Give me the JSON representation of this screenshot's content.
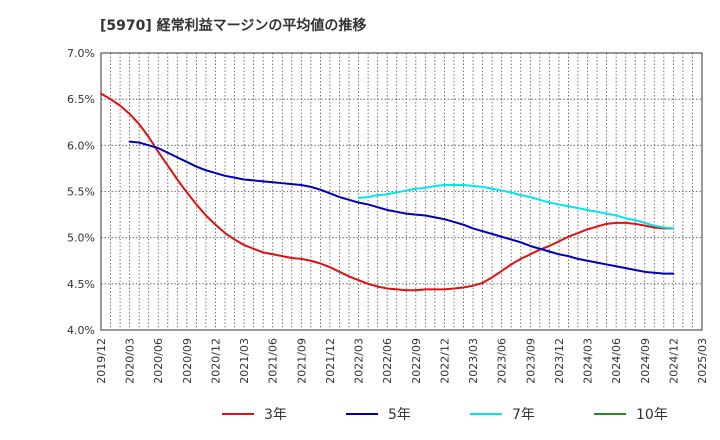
{
  "chart_data": {
    "type": "line",
    "title": "[5970]  経常利益マージンの平均値の推移",
    "xlabel": "",
    "ylabel": "",
    "ylim": [
      4.0,
      7.0
    ],
    "y_ticks": [
      "4.0%",
      "4.5%",
      "5.0%",
      "5.5%",
      "6.0%",
      "6.5%",
      "7.0%"
    ],
    "x_ticks": [
      "2019/12",
      "2020/03",
      "2020/06",
      "2020/09",
      "2020/12",
      "2021/03",
      "2021/06",
      "2021/09",
      "2021/12",
      "2022/03",
      "2022/06",
      "2022/09",
      "2022/12",
      "2023/03",
      "2023/06",
      "2023/09",
      "2023/12",
      "2024/03",
      "2024/06",
      "2024/09",
      "2024/12",
      "2025/03"
    ],
    "grid": true,
    "legend_position": "bottom",
    "series": [
      {
        "name": "3年",
        "color": "#dd1111",
        "points": [
          [
            "2019/12",
            6.56
          ],
          [
            "2020/01",
            6.5
          ],
          [
            "2020/02",
            6.43
          ],
          [
            "2020/03",
            6.34
          ],
          [
            "2020/04",
            6.23
          ],
          [
            "2020/05",
            6.09
          ],
          [
            "2020/06",
            5.93
          ],
          [
            "2020/07",
            5.78
          ],
          [
            "2020/08",
            5.63
          ],
          [
            "2020/09",
            5.49
          ],
          [
            "2020/10",
            5.36
          ],
          [
            "2020/11",
            5.24
          ],
          [
            "2020/12",
            5.14
          ],
          [
            "2021/01",
            5.05
          ],
          [
            "2021/02",
            4.98
          ],
          [
            "2021/03",
            4.92
          ],
          [
            "2021/04",
            4.88
          ],
          [
            "2021/05",
            4.84
          ],
          [
            "2021/06",
            4.82
          ],
          [
            "2021/07",
            4.8
          ],
          [
            "2021/08",
            4.78
          ],
          [
            "2021/09",
            4.77
          ],
          [
            "2021/10",
            4.75
          ],
          [
            "2021/11",
            4.72
          ],
          [
            "2021/12",
            4.68
          ],
          [
            "2022/01",
            4.63
          ],
          [
            "2022/02",
            4.58
          ],
          [
            "2022/03",
            4.54
          ],
          [
            "2022/04",
            4.5
          ],
          [
            "2022/05",
            4.47
          ],
          [
            "2022/06",
            4.45
          ],
          [
            "2022/07",
            4.44
          ],
          [
            "2022/08",
            4.43
          ],
          [
            "2022/09",
            4.43
          ],
          [
            "2022/10",
            4.44
          ],
          [
            "2022/11",
            4.44
          ],
          [
            "2022/12",
            4.44
          ],
          [
            "2023/01",
            4.45
          ],
          [
            "2023/02",
            4.46
          ],
          [
            "2023/03",
            4.48
          ],
          [
            "2023/04",
            4.51
          ],
          [
            "2023/05",
            4.57
          ],
          [
            "2023/06",
            4.64
          ],
          [
            "2023/07",
            4.71
          ],
          [
            "2023/08",
            4.77
          ],
          [
            "2023/09",
            4.82
          ],
          [
            "2023/10",
            4.87
          ],
          [
            "2023/11",
            4.91
          ],
          [
            "2023/12",
            4.96
          ],
          [
            "2024/01",
            5.01
          ],
          [
            "2024/02",
            5.05
          ],
          [
            "2024/03",
            5.09
          ],
          [
            "2024/04",
            5.12
          ],
          [
            "2024/05",
            5.15
          ],
          [
            "2024/06",
            5.16
          ],
          [
            "2024/07",
            5.16
          ],
          [
            "2024/08",
            5.15
          ],
          [
            "2024/09",
            5.13
          ],
          [
            "2024/10",
            5.11
          ],
          [
            "2024/11",
            5.1
          ],
          [
            "2024/12",
            5.1
          ]
        ]
      },
      {
        "name": "5年",
        "color": "#0000bb",
        "points": [
          [
            "2020/03",
            6.04
          ],
          [
            "2020/04",
            6.03
          ],
          [
            "2020/05",
            6.0
          ],
          [
            "2020/06",
            5.97
          ],
          [
            "2020/07",
            5.92
          ],
          [
            "2020/08",
            5.87
          ],
          [
            "2020/09",
            5.82
          ],
          [
            "2020/10",
            5.77
          ],
          [
            "2020/11",
            5.73
          ],
          [
            "2020/12",
            5.7
          ],
          [
            "2021/01",
            5.67
          ],
          [
            "2021/02",
            5.65
          ],
          [
            "2021/03",
            5.63
          ],
          [
            "2021/04",
            5.62
          ],
          [
            "2021/05",
            5.61
          ],
          [
            "2021/06",
            5.6
          ],
          [
            "2021/07",
            5.59
          ],
          [
            "2021/08",
            5.58
          ],
          [
            "2021/09",
            5.57
          ],
          [
            "2021/10",
            5.55
          ],
          [
            "2021/11",
            5.52
          ],
          [
            "2021/12",
            5.48
          ],
          [
            "2022/01",
            5.44
          ],
          [
            "2022/02",
            5.41
          ],
          [
            "2022/03",
            5.38
          ],
          [
            "2022/04",
            5.36
          ],
          [
            "2022/05",
            5.33
          ],
          [
            "2022/06",
            5.3
          ],
          [
            "2022/07",
            5.28
          ],
          [
            "2022/08",
            5.26
          ],
          [
            "2022/09",
            5.25
          ],
          [
            "2022/10",
            5.24
          ],
          [
            "2022/11",
            5.22
          ],
          [
            "2022/12",
            5.2
          ],
          [
            "2023/01",
            5.17
          ],
          [
            "2023/02",
            5.14
          ],
          [
            "2023/03",
            5.1
          ],
          [
            "2023/04",
            5.07
          ],
          [
            "2023/05",
            5.04
          ],
          [
            "2023/06",
            5.01
          ],
          [
            "2023/07",
            4.98
          ],
          [
            "2023/08",
            4.95
          ],
          [
            "2023/09",
            4.91
          ],
          [
            "2023/10",
            4.88
          ],
          [
            "2023/11",
            4.85
          ],
          [
            "2023/12",
            4.82
          ],
          [
            "2024/01",
            4.8
          ],
          [
            "2024/02",
            4.77
          ],
          [
            "2024/03",
            4.75
          ],
          [
            "2024/04",
            4.73
          ],
          [
            "2024/05",
            4.71
          ],
          [
            "2024/06",
            4.69
          ],
          [
            "2024/07",
            4.67
          ],
          [
            "2024/08",
            4.65
          ],
          [
            "2024/09",
            4.63
          ],
          [
            "2024/10",
            4.62
          ],
          [
            "2024/11",
            4.61
          ],
          [
            "2024/12",
            4.61
          ]
        ]
      },
      {
        "name": "7年",
        "color": "#00e5ee",
        "points": [
          [
            "2022/03",
            5.43
          ],
          [
            "2022/04",
            5.44
          ],
          [
            "2022/05",
            5.46
          ],
          [
            "2022/06",
            5.47
          ],
          [
            "2022/07",
            5.49
          ],
          [
            "2022/08",
            5.51
          ],
          [
            "2022/09",
            5.53
          ],
          [
            "2022/10",
            5.54
          ],
          [
            "2022/11",
            5.56
          ],
          [
            "2022/12",
            5.57
          ],
          [
            "2023/01",
            5.57
          ],
          [
            "2023/02",
            5.57
          ],
          [
            "2023/03",
            5.56
          ],
          [
            "2023/04",
            5.55
          ],
          [
            "2023/05",
            5.53
          ],
          [
            "2023/06",
            5.51
          ],
          [
            "2023/07",
            5.49
          ],
          [
            "2023/08",
            5.46
          ],
          [
            "2023/09",
            5.44
          ],
          [
            "2023/10",
            5.41
          ],
          [
            "2023/11",
            5.38
          ],
          [
            "2023/12",
            5.36
          ],
          [
            "2024/01",
            5.34
          ],
          [
            "2024/02",
            5.32
          ],
          [
            "2024/03",
            5.3
          ],
          [
            "2024/04",
            5.28
          ],
          [
            "2024/05",
            5.26
          ],
          [
            "2024/06",
            5.24
          ],
          [
            "2024/07",
            5.21
          ],
          [
            "2024/08",
            5.19
          ],
          [
            "2024/09",
            5.16
          ],
          [
            "2024/10",
            5.13
          ],
          [
            "2024/11",
            5.11
          ],
          [
            "2024/12",
            5.1
          ]
        ]
      },
      {
        "name": "10年",
        "color": "#228b22",
        "points": []
      }
    ]
  }
}
